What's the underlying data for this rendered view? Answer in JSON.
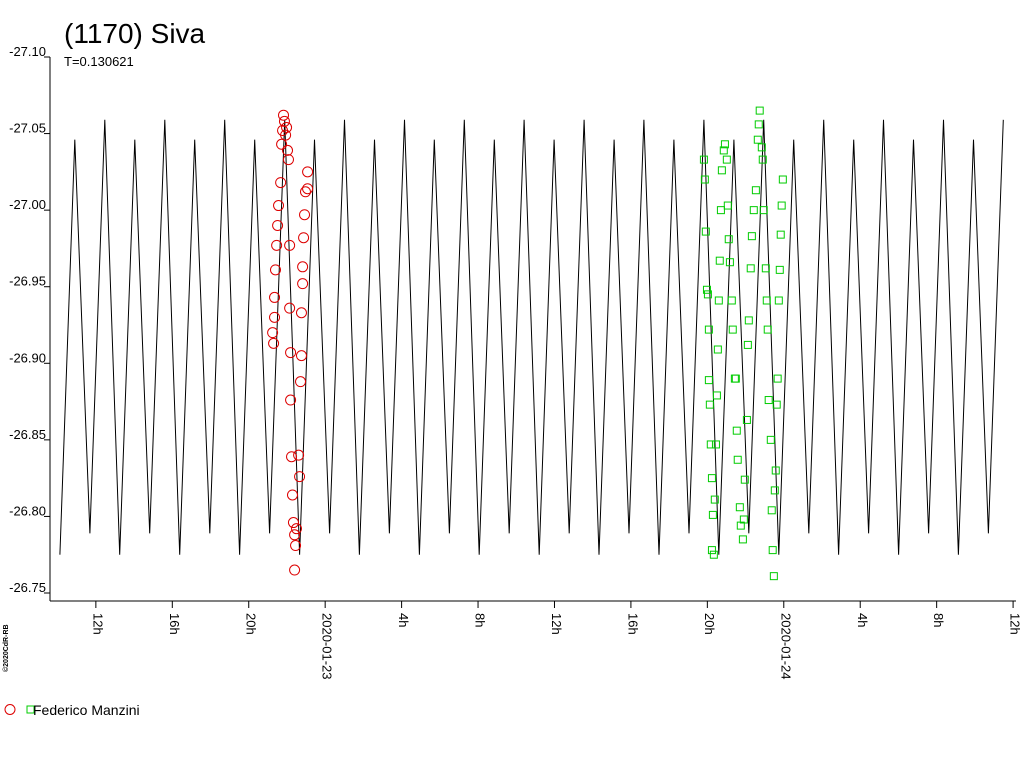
{
  "chart_data": {
    "type": "lightcurve",
    "title": "(1170) Siva",
    "subtitle": "T=0.130621",
    "credit": "©2020CdR-RB",
    "xlim": [
      -14.4,
      36.1
    ],
    "ylim": [
      -27.1,
      -26.75
    ],
    "yticks": [
      {
        "value": -27.1,
        "label": "-27.10"
      },
      -27.05,
      {
        "value": -27.0,
        "label": "-27.00"
      },
      -26.95,
      {
        "value": -26.9,
        "label": "-26.90"
      },
      -26.85,
      {
        "value": -26.8,
        "label": "-26.80"
      },
      -26.75
    ],
    "xticks": [
      {
        "value": -12,
        "label": "12h"
      },
      {
        "value": -8,
        "label": "16h"
      },
      {
        "value": -4,
        "label": "20h"
      },
      {
        "value": 0,
        "label": "2020-01-23"
      },
      {
        "value": 4,
        "label": "4h"
      },
      {
        "value": 8,
        "label": "8h"
      },
      {
        "value": 12,
        "label": "12h"
      },
      {
        "value": 16,
        "label": "16h"
      },
      {
        "value": 20,
        "label": "20h"
      },
      {
        "value": 24,
        "label": "2020-01-24"
      },
      {
        "value": 28,
        "label": "4h"
      },
      {
        "value": 32,
        "label": "8h"
      },
      {
        "value": 36,
        "label": "12h"
      }
    ],
    "model": {
      "color": "#000000",
      "x": [
        -13.88,
        -13.1,
        -12.31,
        -11.53,
        -10.75,
        -9.96,
        -9.18,
        -8.39,
        -7.61,
        -6.83,
        -6.04,
        -5.26,
        -4.48,
        -3.69,
        -2.91,
        -2.12,
        -1.34,
        -0.56,
        0.23,
        1.01,
        1.79,
        2.58,
        3.36,
        4.15,
        4.93,
        5.71,
        6.5,
        7.28,
        8.06,
        8.85,
        9.63,
        10.41,
        11.2,
        11.98,
        12.77,
        13.55,
        14.33,
        15.12,
        15.9,
        16.68,
        17.47,
        18.25,
        19.04,
        19.82,
        20.6,
        21.39,
        22.17,
        22.95,
        23.74,
        24.52,
        25.31,
        26.09,
        26.87,
        27.66,
        28.44,
        29.22,
        30.01,
        30.79,
        31.58,
        32.36,
        33.14,
        33.93,
        34.71,
        35.49
      ],
      "values": [
        -26.775,
        -27.046,
        -26.789,
        -27.059,
        -26.775,
        -27.046,
        -26.789,
        -27.059,
        -26.775,
        -27.046,
        -26.789,
        -27.059,
        -26.775,
        -27.046,
        -26.789,
        -27.059,
        -26.775,
        -27.046,
        -26.789,
        -27.059,
        -26.775,
        -27.046,
        -26.789,
        -27.059,
        -26.775,
        -27.046,
        -26.789,
        -27.059,
        -26.775,
        -27.046,
        -26.789,
        -27.059,
        -26.775,
        -27.046,
        -26.789,
        -27.059,
        -26.775,
        -27.046,
        -26.789,
        -27.059,
        -26.775,
        -27.046,
        -26.789,
        -27.059,
        -26.775,
        -27.046,
        -26.789,
        -27.059,
        -26.775,
        -27.046,
        -26.789,
        -27.059,
        -26.775,
        -27.046,
        -26.789,
        -27.059,
        -26.775,
        -27.046,
        -26.789,
        -27.059,
        -26.775,
        -27.046,
        -26.789,
        -27.059
      ]
    },
    "observer": {
      "name": "Federico Manzini",
      "sessions": [
        {
          "color": "#dd0000",
          "marker": "circle",
          "x": [
            -2.18,
            -2.13,
            -2.02,
            -2.23,
            -2.07,
            -2.28,
            -1.97,
            -1.92,
            -2.33,
            -2.44,
            -2.49,
            -2.54,
            -2.6,
            -2.65,
            -2.65,
            -2.75,
            -2.7,
            -1.86,
            -1.86,
            -1.81,
            -1.81,
            -1.76,
            -1.71,
            -1.66,
            -1.6,
            -1.55,
            -1.6,
            -1.5,
            -1.39,
            -1.34,
            -1.29,
            -1.24,
            -1.24,
            -1.18,
            -1.18,
            -1.13,
            -1.08,
            -1.03,
            -0.92,
            -0.92
          ],
          "values": [
            -27.062,
            -27.058,
            -27.054,
            -27.052,
            -27.049,
            -27.043,
            -27.039,
            -27.033,
            -27.018,
            -27.003,
            -26.99,
            -26.977,
            -26.961,
            -26.943,
            -26.93,
            -26.92,
            -26.913,
            -26.977,
            -26.936,
            -26.907,
            -26.876,
            -26.839,
            -26.814,
            -26.796,
            -26.788,
            -26.781,
            -26.765,
            -26.792,
            -26.84,
            -26.826,
            -26.888,
            -26.905,
            -26.933,
            -26.952,
            -26.963,
            -26.982,
            -26.997,
            -27.012,
            -27.014,
            -27.025
          ]
        },
        {
          "color": "#00cc00",
          "marker": "square",
          "x": [
            19.82,
            19.87,
            19.92,
            19.98,
            20.03,
            20.08,
            20.08,
            20.13,
            20.18,
            20.24,
            20.29,
            20.24,
            20.34,
            20.39,
            20.45,
            20.5,
            20.55,
            20.6,
            20.65,
            20.71,
            20.76,
            20.86,
            20.92,
            21.02,
            21.07,
            21.12,
            21.18,
            21.28,
            21.33,
            21.44,
            21.49,
            21.54,
            21.59,
            21.7,
            21.75,
            21.86,
            21.91,
            21.96,
            22.07,
            22.12,
            22.17,
            22.27,
            22.33,
            22.43,
            22.54,
            22.64,
            22.69,
            22.74,
            22.85,
            22.9,
            22.95,
            23.06,
            23.11,
            23.16,
            23.21,
            23.32,
            23.37,
            23.42,
            23.48,
            23.53,
            23.58,
            23.63,
            23.68,
            23.74,
            23.79,
            23.84,
            23.89,
            23.95
          ],
          "values": [
            -27.033,
            -27.02,
            -26.986,
            -26.948,
            -26.945,
            -26.922,
            -26.889,
            -26.873,
            -26.847,
            -26.825,
            -26.801,
            -26.778,
            -26.775,
            -26.811,
            -26.847,
            -26.879,
            -26.909,
            -26.941,
            -26.967,
            -27.0,
            -27.026,
            -27.039,
            -27.043,
            -27.033,
            -27.003,
            -26.981,
            -26.966,
            -26.941,
            -26.922,
            -26.89,
            -26.89,
            -26.856,
            -26.837,
            -26.806,
            -26.794,
            -26.785,
            -26.798,
            -26.824,
            -26.863,
            -26.912,
            -26.928,
            -26.962,
            -26.983,
            -27.0,
            -27.013,
            -27.046,
            -27.056,
            -27.065,
            -27.041,
            -27.033,
            -27.0,
            -26.962,
            -26.941,
            -26.922,
            -26.876,
            -26.85,
            -26.804,
            -26.778,
            -26.761,
            -26.817,
            -26.83,
            -26.873,
            -26.89,
            -26.941,
            -26.961,
            -26.984,
            -27.003,
            -27.02
          ]
        }
      ]
    }
  }
}
